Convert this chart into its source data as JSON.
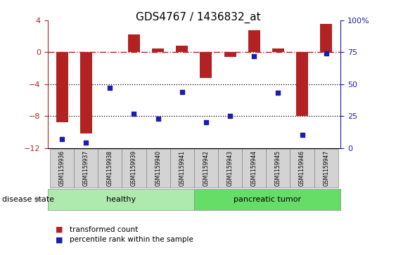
{
  "title": "GDS4767 / 1436832_at",
  "samples": [
    "GSM1159936",
    "GSM1159937",
    "GSM1159938",
    "GSM1159939",
    "GSM1159940",
    "GSM1159941",
    "GSM1159942",
    "GSM1159943",
    "GSM1159944",
    "GSM1159945",
    "GSM1159946",
    "GSM1159947"
  ],
  "transformed_count": [
    -8.8,
    -10.2,
    0.0,
    2.2,
    0.5,
    0.8,
    -3.2,
    -0.6,
    2.8,
    0.5,
    -8.0,
    3.6
  ],
  "percentile_rank": [
    7,
    4,
    47,
    27,
    23,
    44,
    20,
    25,
    72,
    43,
    10,
    74
  ],
  "ylim_left": [
    -12,
    4
  ],
  "ylim_right": [
    0,
    100
  ],
  "yticks_left": [
    -12,
    -8,
    -4,
    0,
    4
  ],
  "yticks_right": [
    0,
    25,
    50,
    75,
    100
  ],
  "bar_color": "#B22222",
  "scatter_color": "#1C1CB0",
  "hline_color": "#B22222",
  "dotted_line_color": "#000000",
  "healthy_count": 6,
  "tumor_count": 6,
  "group_healthy_label": "healthy",
  "group_tumor_label": "pancreatic tumor",
  "group_healthy_color": "#AEEAAE",
  "group_tumor_color": "#66DD66",
  "disease_state_label": "disease state",
  "legend_bar_label": "transformed count",
  "legend_scatter_label": "percentile rank within the sample"
}
